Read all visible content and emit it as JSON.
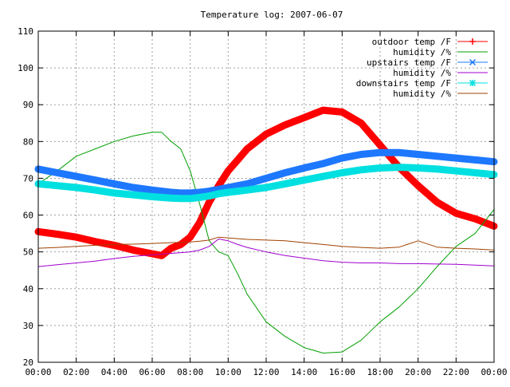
{
  "chart_data": {
    "type": "line",
    "title": "Temperature log: 2007-06-07",
    "xlabel": "",
    "ylabel": "",
    "ylim": [
      20,
      110
    ],
    "xlim": [
      "00:00",
      "24:00"
    ],
    "grid": true,
    "legend_position": "top-right",
    "x_ticks": [
      "00:00",
      "02:00",
      "04:00",
      "06:00",
      "08:00",
      "10:00",
      "12:00",
      "14:00",
      "16:00",
      "18:00",
      "20:00",
      "22:00",
      "00:00"
    ],
    "y_ticks": [
      "20",
      "30",
      "40",
      "50",
      "60",
      "70",
      "80",
      "90",
      "100",
      "110"
    ],
    "x_hours": [
      0,
      1,
      2,
      3,
      4,
      5,
      6,
      6.5,
      7,
      7.5,
      8,
      8.5,
      9,
      9.5,
      10,
      10.5,
      11,
      12,
      13,
      14,
      15,
      16,
      17,
      18,
      19,
      20,
      21,
      22,
      23,
      24
    ],
    "series": [
      {
        "name": "outdoor temp /F",
        "color": "#ff0000",
        "marker": "plus",
        "values": [
          55.5,
          54.8,
          54,
          52.8,
          51.8,
          50.5,
          49.5,
          49,
          51,
          52,
          54,
          58,
          63.5,
          68,
          72,
          75,
          78,
          82,
          84.5,
          86.5,
          88.5,
          88,
          85,
          79,
          73,
          68,
          63.5,
          60.5,
          59,
          57
        ]
      },
      {
        "name": "humidity /%",
        "color": "#00a000",
        "marker": "none",
        "values": [
          68.5,
          72,
          76,
          78,
          80,
          81.5,
          82.5,
          82.5,
          80,
          78,
          72,
          63,
          53,
          50,
          49,
          44,
          38.5,
          31,
          27,
          24,
          22.5,
          22.8,
          26,
          31,
          35,
          40,
          46,
          51.5,
          55,
          61.5
        ]
      },
      {
        "name": "upstairs temp /F",
        "color": "#1e78ff",
        "marker": "x",
        "values": [
          72.5,
          71.5,
          70.5,
          69.5,
          68.5,
          67.5,
          66.8,
          66.5,
          66.2,
          66,
          66,
          66.2,
          66.5,
          67,
          67.5,
          68,
          68.5,
          70,
          71.5,
          72.8,
          74,
          75.5,
          76.5,
          77,
          77,
          76.5,
          76,
          75.5,
          75,
          74.5
        ]
      },
      {
        "name": "humidity /%",
        "color": "#a000d0",
        "marker": "none",
        "values": [
          46,
          46.5,
          47,
          47.5,
          48.2,
          48.8,
          49.2,
          49.4,
          49.6,
          49.8,
          50,
          50.5,
          51.5,
          53.5,
          53,
          52,
          51.2,
          50,
          49,
          48.3,
          47.6,
          47.2,
          47,
          47,
          46.8,
          46.8,
          46.7,
          46.6,
          46.4,
          46.2
        ]
      },
      {
        "name": "downstairs temp /F",
        "color": "#00e0e0",
        "marker": "star",
        "values": [
          68.5,
          68,
          67.5,
          66.8,
          66,
          65.5,
          65,
          64.8,
          64.6,
          64.5,
          64.5,
          64.8,
          65.2,
          65.8,
          66.2,
          66.5,
          66.8,
          67.5,
          68.5,
          69.5,
          70.5,
          71.5,
          72.3,
          72.8,
          73,
          72.8,
          72.5,
          72,
          71.5,
          71
        ]
      },
      {
        "name": "humidity /%",
        "color": "#a04000",
        "marker": "none",
        "values": [
          51,
          51.2,
          51.5,
          51.8,
          52,
          52.1,
          52.3,
          52.4,
          52.5,
          52.6,
          52.7,
          52.9,
          53.2,
          54,
          53.8,
          53.6,
          53.4,
          53.2,
          53,
          52.5,
          52,
          51.5,
          51.2,
          51,
          51.3,
          53,
          51.3,
          51,
          50.8,
          50.5
        ]
      }
    ]
  }
}
